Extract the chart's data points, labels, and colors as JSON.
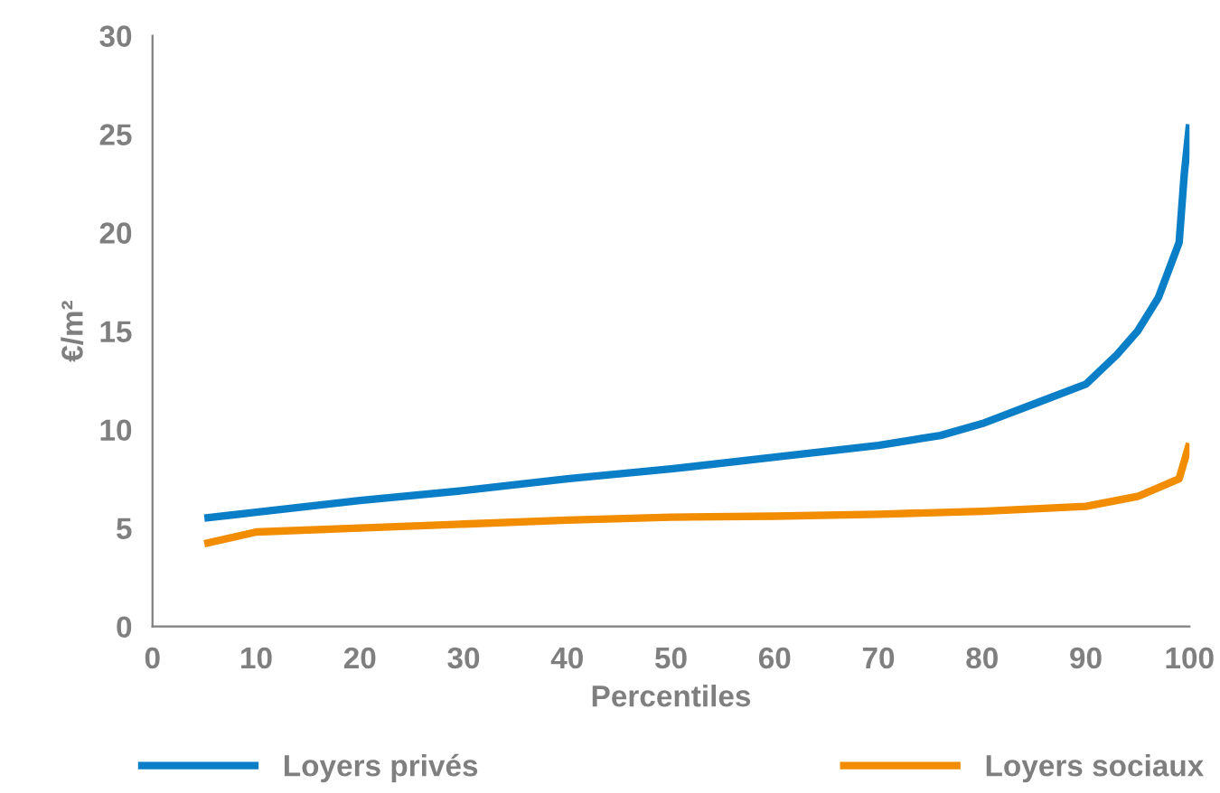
{
  "chart_data": {
    "type": "line",
    "xlabel": "Percentiles",
    "ylabel": "€/m²",
    "xlim": [
      0,
      100
    ],
    "ylim": [
      0,
      30
    ],
    "xticks": [
      0,
      10,
      20,
      30,
      40,
      50,
      60,
      70,
      80,
      90,
      100
    ],
    "yticks": [
      0,
      5,
      10,
      15,
      20,
      25,
      30
    ],
    "grid": false,
    "legend": "bottom",
    "marker": "none",
    "line_style": "solid",
    "series": [
      {
        "name": "Loyers privés",
        "color": "#0a7fc7",
        "x": [
          5,
          10,
          20,
          30,
          40,
          50,
          60,
          70,
          76,
          80,
          85,
          90,
          93,
          95,
          97,
          99,
          99.5,
          100
        ],
        "values": [
          5.5,
          5.8,
          6.4,
          6.9,
          7.5,
          8.0,
          8.6,
          9.2,
          9.7,
          10.3,
          11.3,
          12.3,
          13.8,
          15,
          16.7,
          19.5,
          23,
          25.5
        ]
      },
      {
        "name": "Loyers sociaux",
        "color": "#f28c00",
        "x": [
          5,
          10,
          20,
          30,
          40,
          50,
          60,
          70,
          80,
          90,
          95,
          99,
          100
        ],
        "values": [
          4.2,
          4.8,
          5.0,
          5.2,
          5.4,
          5.55,
          5.6,
          5.7,
          5.85,
          6.1,
          6.6,
          7.5,
          9.3
        ]
      }
    ]
  }
}
